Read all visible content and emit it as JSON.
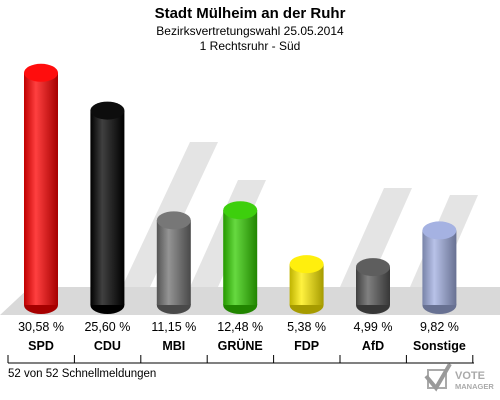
{
  "header": {
    "title": "Stadt Mülheim an der Ruhr",
    "subtitle": "Bezirksvertretungswahl 25.05.2014",
    "district": "1 Rechtsruhr - Süd"
  },
  "chart_data": {
    "type": "bar",
    "categories": [
      "SPD",
      "CDU",
      "MBI",
      "GRÜNE",
      "FDP",
      "AfD",
      "Sonstige"
    ],
    "values": [
      30.58,
      25.6,
      11.15,
      12.48,
      5.38,
      4.99,
      9.82
    ],
    "value_labels": [
      "30,58 %",
      "25,60 %",
      "11,15 %",
      "12,48 %",
      "5,38 %",
      "4,99 %",
      "9,82 %"
    ],
    "colors": [
      "#ff0000",
      "#000000",
      "#707070",
      "#33cc00",
      "#ffee00",
      "#555555",
      "#a0aee0"
    ],
    "ylim": [
      0,
      32
    ],
    "grid": false
  },
  "footer": {
    "status": "52 von 52 Schnellmeldungen"
  },
  "logo": {
    "line1": "VOTE",
    "line2": "MANAGER"
  }
}
